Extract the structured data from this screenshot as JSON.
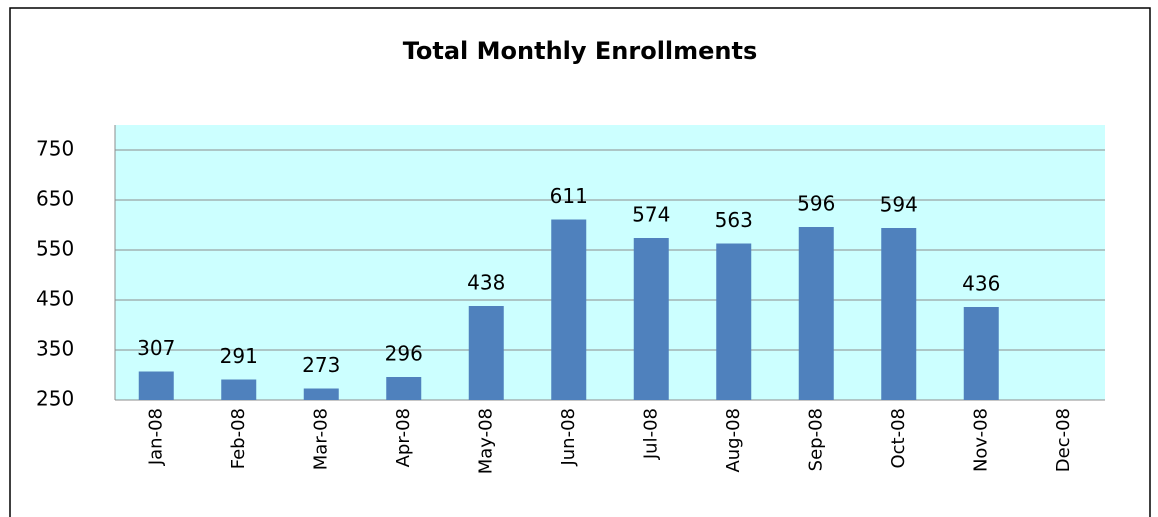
{
  "chart_data": {
    "type": "bar",
    "title": "Total Monthly Enrollments",
    "categories": [
      "Jan-08",
      "Feb-08",
      "Mar-08",
      "Apr-08",
      "May-08",
      "Jun-08",
      "Jul-08",
      "Aug-08",
      "Sep-08",
      "Oct-08",
      "Nov-08",
      "Dec-08"
    ],
    "values": [
      307,
      291,
      273,
      296,
      438,
      611,
      574,
      563,
      596,
      594,
      436,
      null
    ],
    "color": "#4f81bd",
    "background": "#ccffff",
    "ylim": [
      250,
      800
    ],
    "yticks": [
      250,
      350,
      450,
      550,
      650,
      750
    ],
    "grid": true
  }
}
